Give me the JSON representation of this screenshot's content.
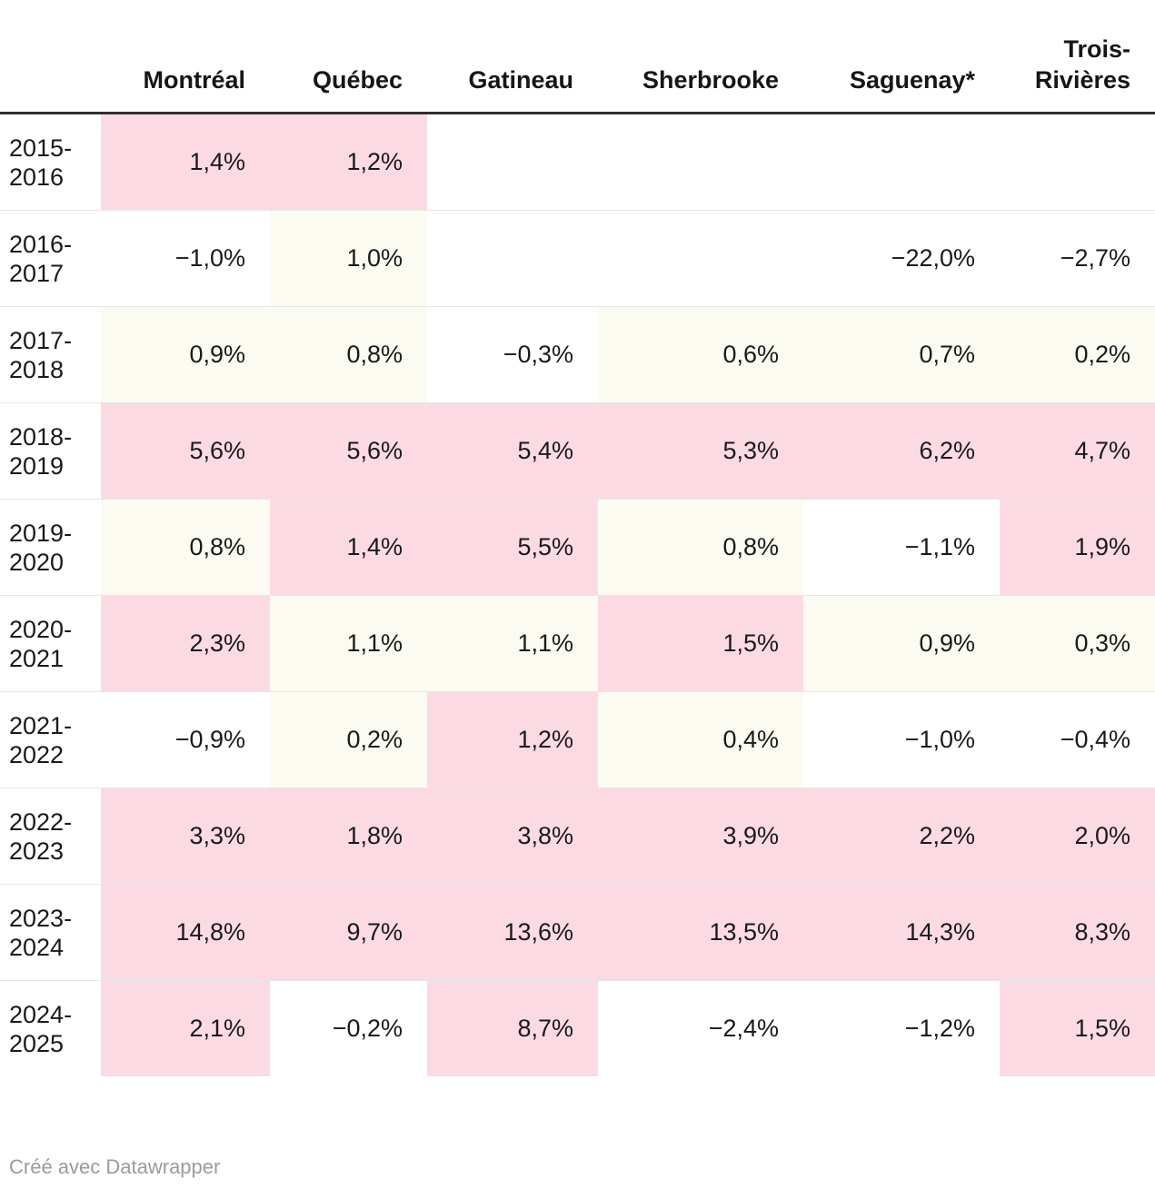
{
  "table": {
    "columns": [
      "Montréal",
      "Québec",
      "Gatineau",
      "Sherbrooke",
      "Saguenay*",
      "Trois-Rivières"
    ],
    "rows": [
      {
        "label": "2015-2016",
        "label_lines": [
          "2015-",
          "2016"
        ],
        "values": [
          "1,4%",
          "1,2%",
          "",
          "",
          "",
          ""
        ],
        "bg": [
          "p",
          "p",
          "w",
          "w",
          "w",
          "w"
        ]
      },
      {
        "label": "2016-2017",
        "label_lines": [
          "2016-",
          "2017"
        ],
        "values": [
          "−1,0%",
          "1,0%",
          "",
          "",
          "−22,0%",
          "−2,7%"
        ],
        "bg": [
          "w",
          "o",
          "w",
          "w",
          "w",
          "w"
        ]
      },
      {
        "label": "2017-2018",
        "label_lines": [
          "2017-",
          "2018"
        ],
        "values": [
          "0,9%",
          "0,8%",
          "−0,3%",
          "0,6%",
          "0,7%",
          "0,2%"
        ],
        "bg": [
          "o",
          "o",
          "w",
          "o",
          "o",
          "o"
        ]
      },
      {
        "label": "2018-2019",
        "label_lines": [
          "2018-",
          "2019"
        ],
        "values": [
          "5,6%",
          "5,6%",
          "5,4%",
          "5,3%",
          "6,2%",
          "4,7%"
        ],
        "bg": [
          "p",
          "p",
          "p",
          "p",
          "p",
          "p"
        ]
      },
      {
        "label": "2019-2020",
        "label_lines": [
          "2019-",
          "2020"
        ],
        "values": [
          "0,8%",
          "1,4%",
          "5,5%",
          "0,8%",
          "−1,1%",
          "1,9%"
        ],
        "bg": [
          "o",
          "p",
          "p",
          "o",
          "w",
          "p"
        ]
      },
      {
        "label": "2020-2021",
        "label_lines": [
          "2020-",
          "2021"
        ],
        "values": [
          "2,3%",
          "1,1%",
          "1,1%",
          "1,5%",
          "0,9%",
          "0,3%"
        ],
        "bg": [
          "p",
          "o",
          "o",
          "p",
          "o",
          "o"
        ]
      },
      {
        "label": "2021-2022",
        "label_lines": [
          "2021-",
          "2022"
        ],
        "values": [
          "−0,9%",
          "0,2%",
          "1,2%",
          "0,4%",
          "−1,0%",
          "−0,4%"
        ],
        "bg": [
          "w",
          "o",
          "p",
          "o",
          "w",
          "w"
        ]
      },
      {
        "label": "2022-2023",
        "label_lines": [
          "2022-",
          "2023"
        ],
        "values": [
          "3,3%",
          "1,8%",
          "3,8%",
          "3,9%",
          "2,2%",
          "2,0%"
        ],
        "bg": [
          "p",
          "p",
          "p",
          "p",
          "p",
          "p"
        ]
      },
      {
        "label": "2023-2024",
        "label_lines": [
          "2023-",
          "2024"
        ],
        "values": [
          "14,8%",
          "9,7%",
          "13,6%",
          "13,5%",
          "14,3%",
          "8,3%"
        ],
        "bg": [
          "p",
          "p",
          "p",
          "p",
          "p",
          "p"
        ]
      },
      {
        "label": "2024-2025",
        "label_lines": [
          "2024-",
          "2025"
        ],
        "values": [
          "2,1%",
          "−0,2%",
          "8,7%",
          "−2,4%",
          "−1,2%",
          "1,5%"
        ],
        "bg": [
          "p",
          "w",
          "p",
          "w",
          "w",
          "p"
        ]
      }
    ]
  },
  "chart_data": {
    "type": "heatmap",
    "subtype": "table",
    "categories": [
      "2015-2016",
      "2016-2017",
      "2017-2018",
      "2018-2019",
      "2019-2020",
      "2020-2021",
      "2021-2022",
      "2022-2023",
      "2023-2024",
      "2024-2025"
    ],
    "series": [
      {
        "name": "Montréal",
        "values": [
          1.4,
          -1.0,
          0.9,
          5.6,
          0.8,
          2.3,
          -0.9,
          3.3,
          14.8,
          2.1
        ]
      },
      {
        "name": "Québec",
        "values": [
          1.2,
          1.0,
          0.8,
          5.6,
          1.4,
          1.1,
          0.2,
          1.8,
          9.7,
          -0.2
        ]
      },
      {
        "name": "Gatineau",
        "values": [
          null,
          null,
          -0.3,
          5.4,
          5.5,
          1.1,
          1.2,
          3.8,
          13.6,
          8.7
        ]
      },
      {
        "name": "Sherbrooke",
        "values": [
          null,
          null,
          0.6,
          5.3,
          0.8,
          1.5,
          0.4,
          3.9,
          13.5,
          -2.4
        ]
      },
      {
        "name": "Saguenay*",
        "values": [
          null,
          -22.0,
          0.7,
          6.2,
          -1.1,
          0.9,
          -1.0,
          2.2,
          14.3,
          -1.2
        ]
      },
      {
        "name": "Trois-Rivières",
        "values": [
          null,
          -2.7,
          0.2,
          4.7,
          1.9,
          0.3,
          -0.4,
          2.0,
          8.3,
          1.5
        ]
      }
    ],
    "value_format": "percent, comma decimal separator, minus sign U+2212",
    "legend_position": "none",
    "grid": "horizontal row separators only",
    "notes": "cells shaded white / off-white / pink by value; right edge of table cropped by viewport"
  },
  "footer": {
    "credit": "Créé avec Datawrapper"
  },
  "colors": {
    "cell_pink": "#fbdae3",
    "cell_offwhite": "#fbfbf2",
    "cell_white": "#ffffff",
    "header_rule": "#2f2f2f",
    "row_separator": "#e6e6e6",
    "text": "#1a1a1a",
    "credit_text": "#9b9b9b"
  }
}
